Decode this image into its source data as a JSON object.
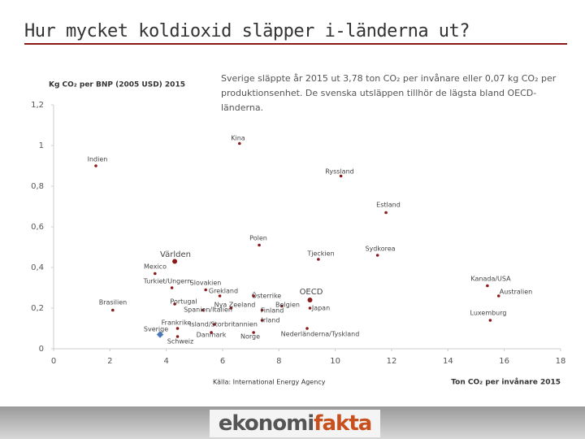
{
  "title": "Hur mycket koldioxid släpper i-länderna ut?",
  "note": "Sverige släppte år 2015 ut 3,78 ton CO₂ per invånare eller 0,07 kg CO₂ per produktionsenhet. De svenska utsläppen tillhör de lägsta bland OECD-länderna.",
  "logo": {
    "part1": "ekonomi",
    "part2": "fakta"
  },
  "chart_data": {
    "type": "scatter",
    "y_label": "Kg CO₂ per BNP (2005 USD) 2015",
    "x_label": "Ton CO₂ per invånare 2015",
    "source": "Källa: International Energy Agency",
    "point_labels": [
      "Indien",
      "Kina",
      "Ryssland",
      "Estland",
      "Polen",
      "Sydkorea",
      "Tjeckien",
      "Världen",
      "Mexico",
      "Turkiet/Ungern",
      "Slovakien",
      "Grekland",
      "Österrike",
      "OECD",
      "Portugal",
      "Nya Zeeland",
      "Spanien/Italien",
      "Belgien",
      "Finland",
      "Japan",
      "Brasilien",
      "Frankrike",
      "Island/Storbritannien",
      "Irland",
      "Danmark",
      "Norge",
      "Sverige",
      "Schweiz",
      "Nederländerna/Tyskland",
      "Kanada/USA",
      "Australien",
      "Luxemburg"
    ],
    "x": [
      1.5,
      6.6,
      10.2,
      11.8,
      7.3,
      11.5,
      9.4,
      4.3,
      3.6,
      4.2,
      5.4,
      5.9,
      7.1,
      9.1,
      4.3,
      6.3,
      5.3,
      8.1,
      7.4,
      9.1,
      2.1,
      4.4,
      5.7,
      7.4,
      5.6,
      7.1,
      3.78,
      4.4,
      9.0,
      15.4,
      15.8,
      15.5
    ],
    "values": [
      0.9,
      1.01,
      0.85,
      0.67,
      0.51,
      0.46,
      0.44,
      0.43,
      0.37,
      0.3,
      0.29,
      0.26,
      0.26,
      0.24,
      0.22,
      0.2,
      0.19,
      0.21,
      0.19,
      0.2,
      0.19,
      0.1,
      0.12,
      0.14,
      0.08,
      0.08,
      0.07,
      0.06,
      0.1,
      0.31,
      0.26,
      0.14
    ],
    "point_colors": [
      "#8b1a1a",
      "#8b1a1a",
      "#8b1a1a",
      "#8b1a1a",
      "#8b1a1a",
      "#8b1a1a",
      "#8b1a1a",
      "#8b1a1a",
      "#8b1a1a",
      "#8b1a1a",
      "#8b1a1a",
      "#8b1a1a",
      "#8b1a1a",
      "#8b1a1a",
      "#8b1a1a",
      "#8b1a1a",
      "#8b1a1a",
      "#8b1a1a",
      "#8b1a1a",
      "#8b1a1a",
      "#8b1a1a",
      "#8b1a1a",
      "#8b1a1a",
      "#8b1a1a",
      "#8b1a1a",
      "#8b1a1a",
      "#4a7ab5",
      "#8b1a1a",
      "#8b1a1a",
      "#8b1a1a",
      "#8b1a1a",
      "#8b1a1a"
    ],
    "xlim": [
      0,
      18
    ],
    "xticks": [
      0,
      2,
      4,
      6,
      8,
      10,
      12,
      14,
      16,
      18
    ],
    "ylim": [
      0,
      1.2
    ],
    "yticks": [
      0,
      {
        "value": 0.2,
        "label": "0,2"
      },
      {
        "value": 0.4,
        "label": "0,4"
      },
      {
        "value": 0.6,
        "label": "0,6"
      },
      {
        "value": 0.8,
        "label": "0,8"
      },
      1,
      {
        "value": 1.2,
        "label": "1,2"
      }
    ],
    "grid": false
  }
}
